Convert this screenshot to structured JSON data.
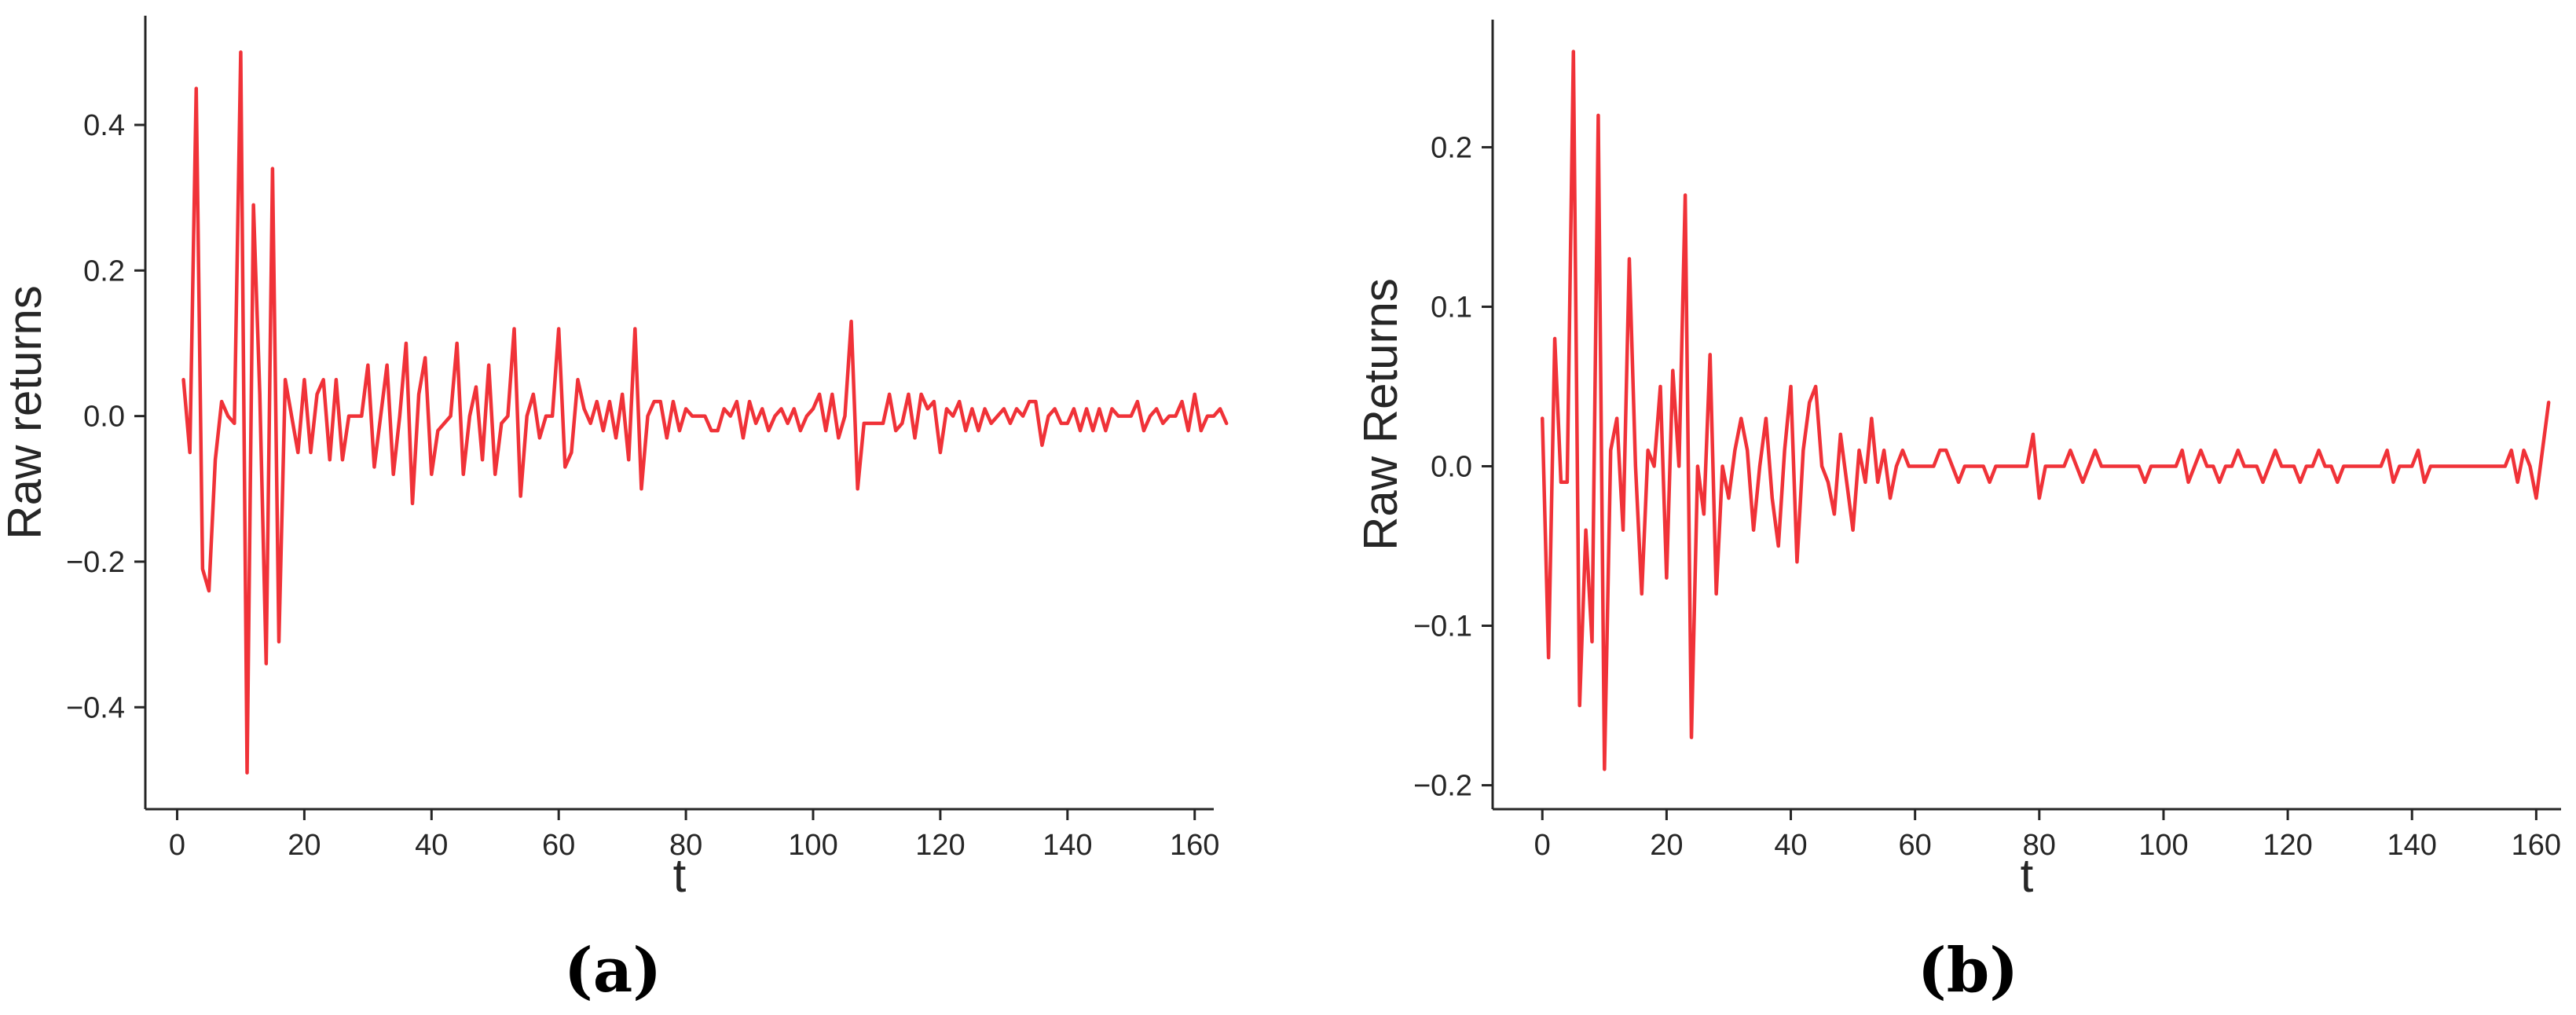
{
  "colors": {
    "series": "#f03238",
    "axis": "#262626"
  },
  "chart_data": [
    {
      "type": "line",
      "panel_label": "(a)",
      "xlabel": "t",
      "ylabel": "Raw returns",
      "xlim": [
        -5,
        163
      ],
      "ylim": [
        -0.54,
        0.55
      ],
      "xticks": [
        0,
        20,
        40,
        60,
        80,
        100,
        120,
        140,
        160
      ],
      "xtick_labels": [
        "0",
        "20",
        "40",
        "60",
        "80",
        "100",
        "120",
        "140",
        "160"
      ],
      "yticks": [
        -0.4,
        -0.2,
        0.0,
        0.2,
        0.4
      ],
      "ytick_labels": [
        "−0.4",
        "−0.2",
        "0.0",
        "0.2",
        "0.4"
      ],
      "grid": false,
      "legend": "none",
      "series": [
        {
          "x_start": 1,
          "values": [
            0.05,
            -0.05,
            0.45,
            -0.21,
            -0.24,
            -0.06,
            0.02,
            0.0,
            -0.01,
            0.5,
            -0.49,
            0.29,
            0.03,
            -0.34,
            0.34,
            -0.31,
            0.05,
            0.0,
            -0.05,
            0.05,
            -0.05,
            0.03,
            0.05,
            -0.06,
            0.05,
            -0.06,
            0.0,
            0.0,
            0.0,
            0.07,
            -0.07,
            0.0,
            0.07,
            -0.08,
            0.0,
            0.1,
            -0.12,
            0.03,
            0.08,
            -0.08,
            -0.02,
            -0.01,
            0.0,
            0.1,
            -0.08,
            0.0,
            0.04,
            -0.06,
            0.07,
            -0.08,
            -0.01,
            0.0,
            0.12,
            -0.11,
            0.0,
            0.03,
            -0.03,
            0.0,
            0.0,
            0.12,
            -0.07,
            -0.05,
            0.05,
            0.01,
            -0.01,
            0.02,
            -0.02,
            0.02,
            -0.03,
            0.03,
            -0.06,
            0.12,
            -0.1,
            0.0,
            0.02,
            0.02,
            -0.03,
            0.02,
            -0.02,
            0.01,
            0.0,
            0.0,
            0.0,
            -0.02,
            -0.02,
            0.01,
            0.0,
            0.02,
            -0.03,
            0.02,
            -0.01,
            0.01,
            -0.02,
            0.0,
            0.01,
            -0.01,
            0.01,
            -0.02,
            0.0,
            0.01,
            0.03,
            -0.02,
            0.03,
            -0.03,
            0.0,
            0.13,
            -0.1,
            -0.01,
            -0.01,
            -0.01,
            -0.01,
            0.03,
            -0.02,
            -0.01,
            0.03,
            -0.03,
            0.03,
            0.01,
            0.02,
            -0.05,
            0.01,
            0.0,
            0.02,
            -0.02,
            0.01,
            -0.02,
            0.01,
            -0.01,
            0.0,
            0.01,
            -0.01,
            0.01,
            0.0,
            0.02,
            0.02,
            -0.04,
            0.0,
            0.01,
            -0.01,
            -0.01,
            0.01,
            -0.02,
            0.01,
            -0.02,
            0.01,
            -0.02,
            0.01,
            0.0,
            0.0,
            0.0,
            0.02,
            -0.02,
            0.0,
            0.01,
            -0.01,
            0.0,
            0.0,
            0.02,
            -0.02,
            0.03,
            -0.02,
            0.0,
            0.0,
            0.01,
            -0.01
          ]
        }
      ]
    },
    {
      "type": "line",
      "panel_label": "(b)",
      "xlabel": "t",
      "ylabel": "Raw Returns",
      "xlim": [
        -8,
        164
      ],
      "ylim": [
        -0.215,
        0.28
      ],
      "xticks": [
        0,
        20,
        40,
        60,
        80,
        100,
        120,
        140,
        160
      ],
      "xtick_labels": [
        "0",
        "20",
        "40",
        "60",
        "80",
        "100",
        "120",
        "140",
        "160"
      ],
      "yticks": [
        -0.2,
        -0.1,
        0.0,
        0.1,
        0.2
      ],
      "ytick_labels": [
        "−0.2",
        "−0.1",
        "0.0",
        "0.1",
        "0.2"
      ],
      "grid": false,
      "legend": "none",
      "series": [
        {
          "x_start": 0,
          "values": [
            0.03,
            -0.12,
            0.08,
            -0.01,
            -0.01,
            0.26,
            -0.15,
            -0.04,
            -0.11,
            0.22,
            -0.19,
            0.01,
            0.03,
            -0.04,
            0.13,
            0.0,
            -0.08,
            0.01,
            0.0,
            0.05,
            -0.07,
            0.06,
            0.0,
            0.17,
            -0.17,
            0.0,
            -0.03,
            0.07,
            -0.08,
            0.0,
            -0.02,
            0.01,
            0.03,
            0.01,
            -0.04,
            0.0,
            0.03,
            -0.02,
            -0.05,
            0.01,
            0.05,
            -0.06,
            0.01,
            0.04,
            0.05,
            0.0,
            -0.01,
            -0.03,
            0.02,
            -0.01,
            -0.04,
            0.01,
            -0.01,
            0.03,
            -0.01,
            0.01,
            -0.02,
            0.0,
            0.01,
            0.0,
            0.0,
            0.0,
            0.0,
            0.0,
            0.01,
            0.01,
            0.0,
            -0.01,
            0.0,
            0.0,
            0.0,
            0.0,
            -0.01,
            0.0,
            0.0,
            0.0,
            0.0,
            0.0,
            0.0,
            0.02,
            -0.02,
            0.0,
            0.0,
            0.0,
            0.0,
            0.01,
            0.0,
            -0.01,
            0.0,
            0.01,
            0.0,
            0.0,
            0.0,
            0.0,
            0.0,
            0.0,
            0.0,
            -0.01,
            0.0,
            0.0,
            0.0,
            0.0,
            0.0,
            0.01,
            -0.01,
            0.0,
            0.01,
            0.0,
            0.0,
            -0.01,
            0.0,
            0.0,
            0.01,
            0.0,
            0.0,
            0.0,
            -0.01,
            0.0,
            0.01,
            0.0,
            0.0,
            0.0,
            -0.01,
            0.0,
            0.0,
            0.01,
            0.0,
            0.0,
            -0.01,
            0.0,
            0.0,
            0.0,
            0.0,
            0.0,
            0.0,
            0.0,
            0.01,
            -0.01,
            0.0,
            0.0,
            0.0,
            0.01,
            -0.01,
            0.0,
            0.0,
            0.0,
            0.0,
            0.0,
            0.0,
            0.0,
            0.0,
            0.0,
            0.0,
            0.0,
            0.0,
            0.0,
            0.01,
            -0.01,
            0.01,
            0.0,
            -0.02,
            0.01,
            0.04
          ]
        }
      ]
    }
  ]
}
